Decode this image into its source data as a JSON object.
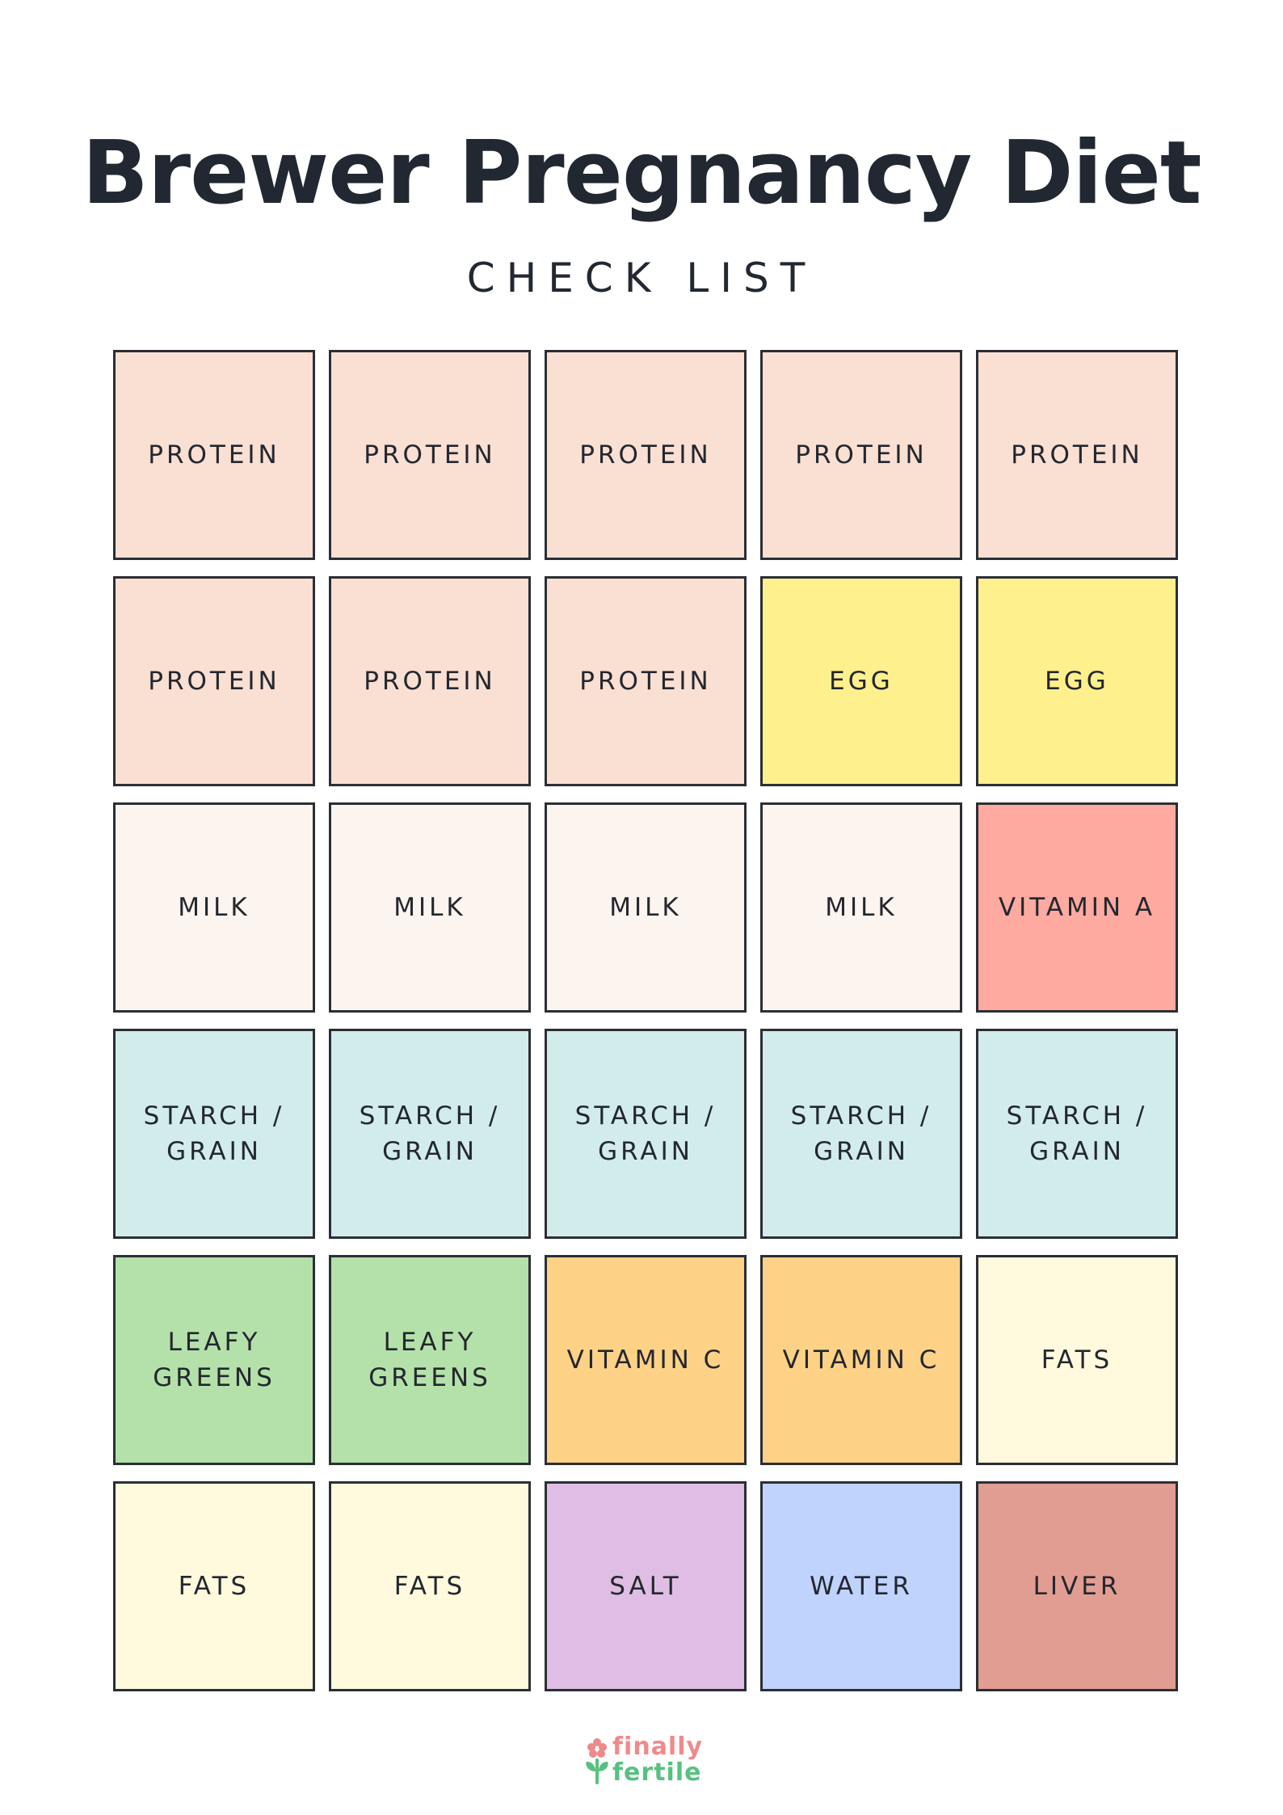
{
  "title": "Brewer Pregnancy Diet",
  "subtitle": "CHECK LIST",
  "colors": {
    "protein": "#fadfd3",
    "egg": "#fff08e",
    "milk": "#fcf4ef",
    "vitamin_a": "#ffaaa0",
    "starch_grain": "#d2ecec",
    "leafy_greens": "#b4e1a9",
    "vitamin_c": "#fdd286",
    "fats": "#fffadd",
    "salt": "#e0bde4",
    "water": "#bfd3fd",
    "liver": "#e29d92",
    "border": "#2b2f35",
    "logo_pink": "#f08a8a",
    "logo_green": "#58c182"
  },
  "cells": [
    {
      "label": "PROTEIN",
      "color": "#fadfd3"
    },
    {
      "label": "PROTEIN",
      "color": "#fadfd3"
    },
    {
      "label": "PROTEIN",
      "color": "#fadfd3"
    },
    {
      "label": "PROTEIN",
      "color": "#fadfd3"
    },
    {
      "label": "PROTEIN",
      "color": "#fadfd3"
    },
    {
      "label": "PROTEIN",
      "color": "#fadfd3"
    },
    {
      "label": "PROTEIN",
      "color": "#fadfd3"
    },
    {
      "label": "PROTEIN",
      "color": "#fadfd3"
    },
    {
      "label": "EGG",
      "color": "#fff08e"
    },
    {
      "label": "EGG",
      "color": "#fff08e"
    },
    {
      "label": "MILK",
      "color": "#fcf4ef"
    },
    {
      "label": "MILK",
      "color": "#fcf4ef"
    },
    {
      "label": "MILK",
      "color": "#fcf4ef"
    },
    {
      "label": "MILK",
      "color": "#fcf4ef"
    },
    {
      "label": "VITAMIN A",
      "color": "#ffaaa0"
    },
    {
      "label": "STARCH /\nGRAIN",
      "color": "#d2ecec"
    },
    {
      "label": "STARCH /\nGRAIN",
      "color": "#d2ecec"
    },
    {
      "label": "STARCH /\nGRAIN",
      "color": "#d2ecec"
    },
    {
      "label": "STARCH /\nGRAIN",
      "color": "#d2ecec"
    },
    {
      "label": "STARCH /\nGRAIN",
      "color": "#d2ecec"
    },
    {
      "label": "LEAFY\nGREENS",
      "color": "#b4e1a9"
    },
    {
      "label": "LEAFY\nGREENS",
      "color": "#b4e1a9"
    },
    {
      "label": "VITAMIN C",
      "color": "#fdd286"
    },
    {
      "label": "VITAMIN C",
      "color": "#fdd286"
    },
    {
      "label": "FATS",
      "color": "#fffadd"
    },
    {
      "label": "FATS",
      "color": "#fffadd"
    },
    {
      "label": "FATS",
      "color": "#fffadd"
    },
    {
      "label": "SALT",
      "color": "#e0bde4"
    },
    {
      "label": "WATER",
      "color": "#bfd3fd"
    },
    {
      "label": "LIVER",
      "color": "#e29d92"
    }
  ],
  "logo": {
    "line1": "finally",
    "line2": "fertile",
    "icon": "sprout-icon"
  }
}
